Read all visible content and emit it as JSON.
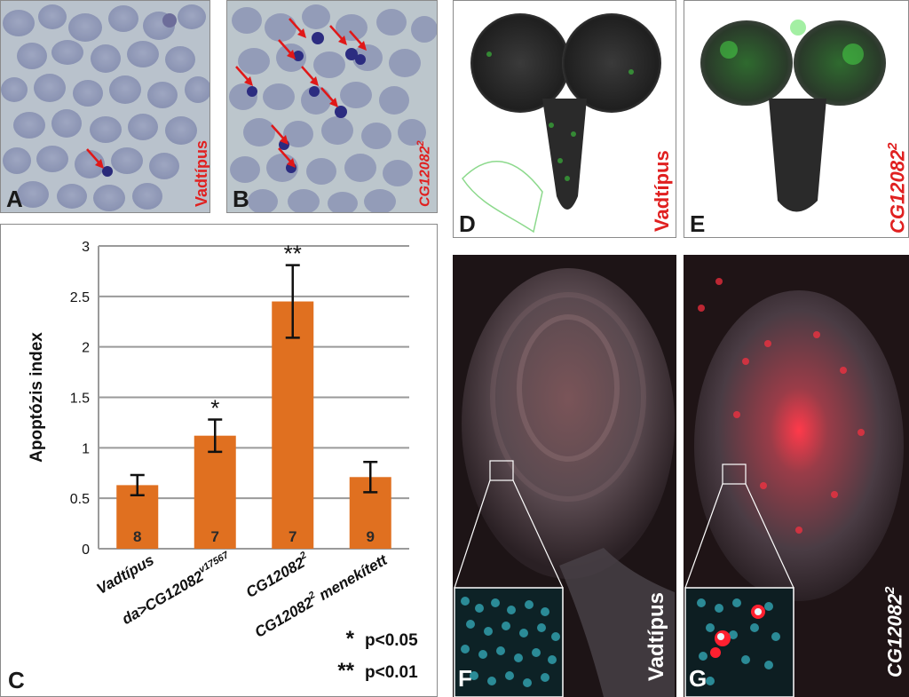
{
  "panels": {
    "A": {
      "letter": "A",
      "label": "Vadtípus"
    },
    "B": {
      "letter": "B",
      "label": "CG12082",
      "label_sup": "2"
    },
    "C": {
      "letter": "C"
    },
    "D": {
      "letter": "D",
      "label": "Vadtípus"
    },
    "E": {
      "letter": "E",
      "label": "CG12082",
      "label_sup": "2"
    },
    "F": {
      "letter": "F",
      "label": "Vadtípus"
    },
    "G": {
      "letter": "G",
      "label": "CG12082",
      "label_sup": "2"
    }
  },
  "chart_data": {
    "type": "bar",
    "ylabel": "Apoptózis index",
    "ylim": [
      0,
      3
    ],
    "yticks": [
      "0",
      "0.5",
      "1",
      "1.5",
      "2",
      "2.5",
      "3"
    ],
    "categories": [
      {
        "main": "Vadtípus",
        "sup": "",
        "tail": ""
      },
      {
        "main": "da>CG12082",
        "sup": "v17567",
        "tail": ""
      },
      {
        "main": "CG12082",
        "sup": "2",
        "tail": ""
      },
      {
        "main": "CG12082",
        "sup": "2",
        "tail": " menekített"
      }
    ],
    "values": [
      0.63,
      1.12,
      2.45,
      0.71
    ],
    "errors": [
      0.1,
      0.16,
      0.36,
      0.15
    ],
    "n": [
      "8",
      "7",
      "7",
      "9"
    ],
    "significance": [
      "",
      "*",
      "**",
      ""
    ],
    "bar_color": "#e07020",
    "legend": [
      {
        "symbol": "*",
        "text": "p<0.05"
      },
      {
        "symbol": "**",
        "text": "p<0.01"
      }
    ]
  },
  "colors": {
    "label_red": "#e02020",
    "grid": "#9a9a9a"
  }
}
